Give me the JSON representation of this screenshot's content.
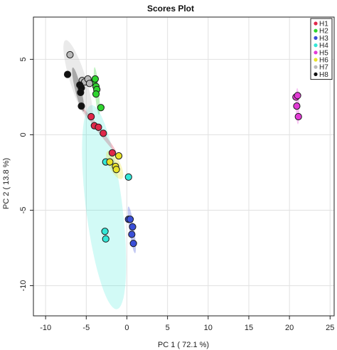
{
  "chart_data": {
    "type": "scatter",
    "title": "Scores Plot",
    "xlabel": "PC 1 ( 72.1 %)",
    "ylabel": "PC 2 ( 13.8 %)",
    "xlim": [
      -11.5,
      25.5
    ],
    "ylim": [
      -12,
      7.8
    ],
    "xticks": [
      -10,
      -5,
      0,
      5,
      10,
      15,
      20,
      25
    ],
    "xtick_labels": [
      "-10",
      "-5",
      "0",
      "5",
      "10",
      "15",
      "20",
      "25"
    ],
    "yticks": [
      5,
      0,
      -5,
      -10
    ],
    "ytick_labels": [
      "5",
      "0",
      "-5",
      "-10"
    ],
    "grid": true,
    "legend_position": "top-right",
    "series": [
      {
        "name": "H1",
        "color": "#e0284a",
        "points": [
          [
            -4.4,
            1.2
          ],
          [
            -4.0,
            0.6
          ],
          [
            -3.5,
            0.5
          ],
          [
            -2.9,
            0.1
          ],
          [
            -1.8,
            -1.2
          ]
        ],
        "ellipse": {
          "cx": -3.4,
          "cy": 0.3,
          "rx": 2.6,
          "ry": 0.18,
          "angle": -35
        }
      },
      {
        "name": "H2",
        "color": "#2ed52e",
        "points": [
          [
            -4.1,
            3.5
          ],
          [
            -3.9,
            3.7
          ],
          [
            -3.8,
            3.2
          ],
          [
            -3.7,
            3.0
          ],
          [
            -3.8,
            2.7
          ],
          [
            -3.2,
            1.8
          ]
        ],
        "ellipse": {
          "cx": -3.7,
          "cy": 2.9,
          "rx": 1.6,
          "ry": 0.25,
          "angle": -80
        }
      },
      {
        "name": "H3",
        "color": "#3a4fd8",
        "points": [
          [
            0.2,
            -5.6
          ],
          [
            0.4,
            -5.6
          ],
          [
            0.7,
            -6.1
          ],
          [
            0.6,
            -6.6
          ],
          [
            0.8,
            -7.2
          ]
        ],
        "ellipse": {
          "cx": 0.6,
          "cy": -6.3,
          "rx": 1.6,
          "ry": 0.3,
          "angle": -75
        }
      },
      {
        "name": "H4",
        "color": "#34e7d7",
        "points": [
          [
            -2.6,
            -1.8
          ],
          [
            0.2,
            -2.8
          ],
          [
            -2.7,
            -6.4
          ],
          [
            -2.6,
            -6.9
          ]
        ],
        "ellipse": {
          "cx": -2.8,
          "cy": -4.8,
          "rx": 6.95,
          "ry": 2.2,
          "angle": -76
        }
      },
      {
        "name": "H5",
        "color": "#e33ad6",
        "points": [
          [
            20.8,
            2.5
          ],
          [
            21.0,
            2.6
          ],
          [
            20.9,
            1.9
          ],
          [
            21.1,
            1.2
          ]
        ],
        "ellipse": {
          "cx": 21.0,
          "cy": 1.9,
          "rx": 1.2,
          "ry": 0.22,
          "angle": -88
        }
      },
      {
        "name": "H6",
        "color": "#e8e228",
        "points": [
          [
            -1.0,
            -1.4
          ],
          [
            -2.1,
            -1.8
          ],
          [
            -1.4,
            -2.1
          ],
          [
            -1.3,
            -2.3
          ]
        ],
        "ellipse": {
          "cx": -1.5,
          "cy": -2.0,
          "rx": 1.3,
          "ry": 0.55,
          "angle": -40
        }
      },
      {
        "name": "H7",
        "color": "#b9b9b9",
        "points": [
          [
            -7.0,
            5.3
          ],
          [
            -5.5,
            3.6
          ],
          [
            -5.2,
            3.5
          ],
          [
            -4.8,
            3.7
          ],
          [
            -4.6,
            3.4
          ]
        ],
        "ellipse": {
          "cx": -6.0,
          "cy": 3.6,
          "rx": 3.1,
          "ry": 0.9,
          "angle": -58
        }
      },
      {
        "name": "H8",
        "color": "#111111",
        "points": [
          [
            -7.3,
            4.0
          ],
          [
            -5.8,
            3.3
          ],
          [
            -5.6,
            3.1
          ],
          [
            -5.7,
            2.8
          ],
          [
            -5.6,
            1.9
          ]
        ],
        "ellipse": {
          "cx": -6.0,
          "cy": 3.0,
          "rx": 1.6,
          "ry": 0.35,
          "angle": -65
        }
      }
    ]
  }
}
